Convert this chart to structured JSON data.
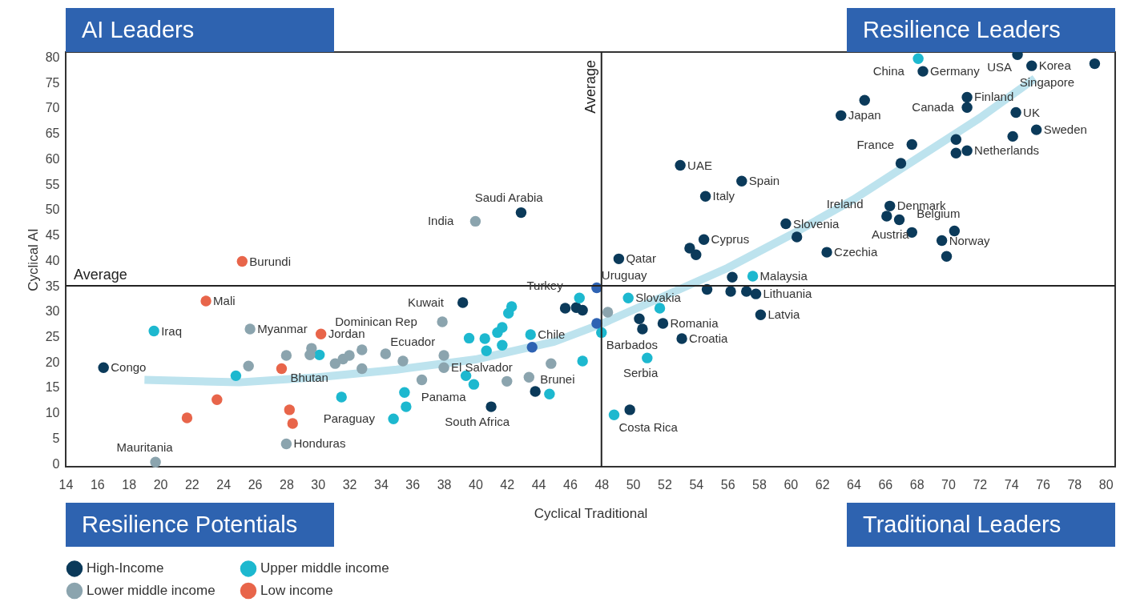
{
  "chart_data": {
    "type": "scatter",
    "xlabel": "Cyclical Traditional",
    "ylabel": "Cyclical AI",
    "xlim": [
      14,
      80.6
    ],
    "ylim": [
      -0.6,
      81
    ],
    "xticks": [
      14,
      16,
      18,
      20,
      22,
      24,
      26,
      28,
      30,
      32,
      34,
      36,
      38,
      40,
      42,
      44,
      46,
      48,
      50,
      52,
      54,
      56,
      58,
      60,
      62,
      64,
      66,
      68,
      70,
      72,
      74,
      76,
      78,
      80
    ],
    "yticks": [
      0,
      5,
      10,
      15,
      20,
      25,
      30,
      35,
      40,
      45,
      50,
      55,
      60,
      65,
      70,
      75,
      80
    ],
    "grid": false,
    "marker": "circle",
    "legend": "bottom",
    "series": [
      {
        "type": "line",
        "color": "#bde3ee",
        "marker": "none",
        "x": [
          19,
          25,
          30,
          35,
          40,
          45,
          48,
          52,
          56,
          60,
          64,
          68,
          72,
          75.5
        ],
        "values": [
          16.5,
          16,
          17,
          18.5,
          20.5,
          24,
          27.5,
          33,
          38.5,
          45,
          52,
          60,
          68,
          75.8
        ]
      },
      {
        "name": "High-Income",
        "color": "#0b3a5a",
        "x": [
          16.4,
          42.9,
          39.2,
          49.1,
          53.0,
          54.6,
          54.5,
          53.6,
          54.0,
          56.9,
          59.7,
          60.4,
          62.3,
          56.3,
          63.2,
          64.7,
          68.4,
          75.3,
          74.4,
          79.3,
          71.2,
          71.2,
          74.3,
          75.6,
          74.1,
          67.7,
          70.5,
          70.5,
          71.2,
          67.0,
          66.3,
          66.1,
          66.9,
          67.7,
          70.4,
          69.6,
          69.9,
          54.7,
          56.2,
          57.2,
          57.8,
          58.1,
          50.4,
          50.6,
          51.9,
          53.1,
          49.8,
          45.7,
          46.4,
          46.8,
          43.8,
          41.0
        ],
        "values": [
          18.9,
          49.4,
          31.7,
          40.3,
          58.7,
          52.6,
          44.1,
          42.4,
          41.1,
          55.6,
          47.2,
          44.6,
          41.6,
          36.7,
          68.5,
          71.5,
          77.2,
          78.3,
          80.5,
          78.7,
          72.1,
          70.1,
          69.1,
          65.7,
          64.4,
          62.8,
          63.8,
          61.1,
          61.6,
          59.1,
          50.7,
          48.7,
          48.0,
          45.5,
          45.8,
          43.9,
          40.8,
          34.3,
          33.9,
          33.9,
          33.4,
          29.3,
          28.5,
          26.5,
          27.6,
          24.6,
          10.6,
          30.6,
          30.7,
          30.2,
          14.2,
          11.2
        ]
      },
      {
        "name": "Upper middle income",
        "color": "#1db8cf",
        "x": [
          68.1,
          57.6,
          49.7,
          51.7,
          48.0,
          50.9,
          48.8,
          42.3,
          42.1,
          41.7,
          41.4,
          39.6,
          40.6,
          40.7,
          41.7,
          43.5,
          46.6,
          46.8,
          44.7,
          39.4,
          39.9,
          35.5,
          35.6,
          34.8,
          19.6,
          30.1,
          24.8,
          31.5
        ],
        "values": [
          79.7,
          36.9,
          32.6,
          30.6,
          25.8,
          20.8,
          9.6,
          30.9,
          29.6,
          26.8,
          25.8,
          24.7,
          24.6,
          22.2,
          23.3,
          25.4,
          32.6,
          20.2,
          13.7,
          17.3,
          15.6,
          14.0,
          11.2,
          8.8,
          26.1,
          21.4,
          17.3,
          13.1
        ]
      },
      {
        "name": "Lower middle income",
        "color": "#8ba4ae",
        "x": [
          40.0,
          37.9,
          48.4,
          44.8,
          43.4,
          42.0,
          38.0,
          38.0,
          36.6,
          35.4,
          34.3,
          25.7,
          29.6,
          29.5,
          28.0,
          31.1,
          31.6,
          32.0,
          32.8,
          32.8,
          25.6,
          28.0,
          19.7
        ],
        "values": [
          47.7,
          27.9,
          29.8,
          19.7,
          17.0,
          16.2,
          21.3,
          18.9,
          16.5,
          20.2,
          21.6,
          26.5,
          22.7,
          21.4,
          21.3,
          19.7,
          20.6,
          21.3,
          22.4,
          18.7,
          19.2,
          3.9,
          0.3
        ]
      },
      {
        "name": "Low income",
        "color": "#e8654a",
        "x": [
          25.2,
          22.9,
          30.2,
          27.7,
          23.6,
          21.7,
          28.2,
          28.4
        ],
        "values": [
          39.8,
          32.0,
          25.5,
          18.7,
          12.6,
          9.0,
          10.6,
          7.9
        ]
      },
      {
        "color": "#2e63b3",
        "x": [
          47.7,
          47.7,
          43.6
        ],
        "values": [
          34.6,
          27.6,
          22.9
        ]
      }
    ],
    "ref_lines": [
      {
        "axis": "x",
        "value": 48,
        "label": "Average"
      },
      {
        "axis": "y",
        "value": 35,
        "label": "Average"
      }
    ],
    "annotations": [
      "AI Leaders",
      "Resilience Leaders",
      "Resilience Potentials",
      "Traditional Leaders",
      {
        "text": "Congo",
        "x": 16.4,
        "y": 18.9
      },
      {
        "text": "Mauritania",
        "x": 19.7,
        "y": 0.3
      },
      {
        "text": "Iraq",
        "x": 19.6,
        "y": 26.1
      },
      {
        "text": "Mali",
        "x": 22.9,
        "y": 32.0
      },
      {
        "text": "Myanmar",
        "x": 25.7,
        "y": 26.5
      },
      {
        "text": "Burundi",
        "x": 25.2,
        "y": 39.8
      },
      {
        "text": "Jordan",
        "x": 30.2,
        "y": 25.5
      },
      {
        "text": "Honduras",
        "x": 28.0,
        "y": 3.9
      },
      {
        "text": "El Salvador",
        "x": 38.0,
        "y": 18.9
      },
      {
        "text": "Bhutan",
        "x": 31.6,
        "y": 20.6
      },
      {
        "text": "Ecuador",
        "x": 34.3,
        "y": 21.6
      },
      {
        "text": "Paraguay",
        "x": 34.8,
        "y": 8.8
      },
      {
        "text": "Panama",
        "x": 39.9,
        "y": 15.6
      },
      {
        "text": "South Africa",
        "x": 41.0,
        "y": 11.2
      },
      {
        "text": "Brunei",
        "x": 43.8,
        "y": 14.2
      },
      {
        "text": "Kuwait",
        "x": 39.2,
        "y": 31.7
      },
      {
        "text": "Dominican Rep",
        "x": 37.9,
        "y": 27.9
      },
      {
        "text": "Costa Rica",
        "x": 48.8,
        "y": 9.6
      },
      {
        "text": "India",
        "x": 40.0,
        "y": 47.7
      },
      {
        "text": "Saudi Arabia",
        "x": 42.9,
        "y": 49.4
      },
      {
        "text": "Uruguay",
        "x": 47.7,
        "y": 34.6
      },
      {
        "text": "Turkey",
        "x": 46.6,
        "y": 32.6
      },
      {
        "text": "Chile",
        "x": 43.5,
        "y": 25.4
      },
      {
        "text": "Qatar",
        "x": 49.1,
        "y": 40.3
      },
      {
        "text": "Barbados",
        "x": 48.0,
        "y": 25.8
      },
      {
        "text": "Serbia",
        "x": 50.9,
        "y": 20.8
      },
      {
        "text": "Slovakia",
        "x": 49.7,
        "y": 32.6
      },
      {
        "text": "Romania",
        "x": 51.9,
        "y": 27.6
      },
      {
        "text": "Croatia",
        "x": 53.1,
        "y": 24.6
      },
      {
        "text": "Cyprus",
        "x": 54.5,
        "y": 44.1
      },
      {
        "text": "Italy",
        "x": 54.6,
        "y": 52.6
      },
      {
        "text": "UAE",
        "x": 53.0,
        "y": 58.7
      },
      {
        "text": "Spain",
        "x": 56.9,
        "y": 55.6
      },
      {
        "text": "Slovenia",
        "x": 59.7,
        "y": 47.2
      },
      {
        "text": "Czechia",
        "x": 62.3,
        "y": 41.6
      },
      {
        "text": "Malaysia",
        "x": 57.6,
        "y": 36.9
      },
      {
        "text": "Lithuania",
        "x": 57.8,
        "y": 33.4
      },
      {
        "text": "Latvia",
        "x": 58.1,
        "y": 29.3
      },
      {
        "text": "Denmark",
        "x": 66.3,
        "y": 50.7
      },
      {
        "text": "Ireland",
        "x": 66.1,
        "y": 48.7
      },
      {
        "text": "Austria",
        "x": 66.9,
        "y": 48.0
      },
      {
        "text": "Belgium",
        "x": 67.7,
        "y": 45.5
      },
      {
        "text": "Norway",
        "x": 69.6,
        "y": 43.9
      },
      {
        "text": "Netherlands",
        "x": 71.2,
        "y": 61.6
      },
      {
        "text": "France",
        "x": 67.7,
        "y": 62.8
      },
      {
        "text": "Japan",
        "x": 63.2,
        "y": 68.5
      },
      {
        "text": "Germany",
        "x": 68.4,
        "y": 77.2
      },
      {
        "text": "China",
        "x": 68.1,
        "y": 79.7
      },
      {
        "text": "Finland",
        "x": 71.2,
        "y": 72.1
      },
      {
        "text": "Canada",
        "x": 71.2,
        "y": 70.1
      },
      {
        "text": "UK",
        "x": 74.3,
        "y": 69.1
      },
      {
        "text": "Sweden",
        "x": 75.6,
        "y": 65.7
      },
      {
        "text": "Korea",
        "x": 75.3,
        "y": 78.3
      },
      {
        "text": "USA",
        "x": 74.4,
        "y": 80.5
      },
      {
        "text": "Singapore",
        "x": 79.3,
        "y": 78.7
      }
    ]
  }
}
